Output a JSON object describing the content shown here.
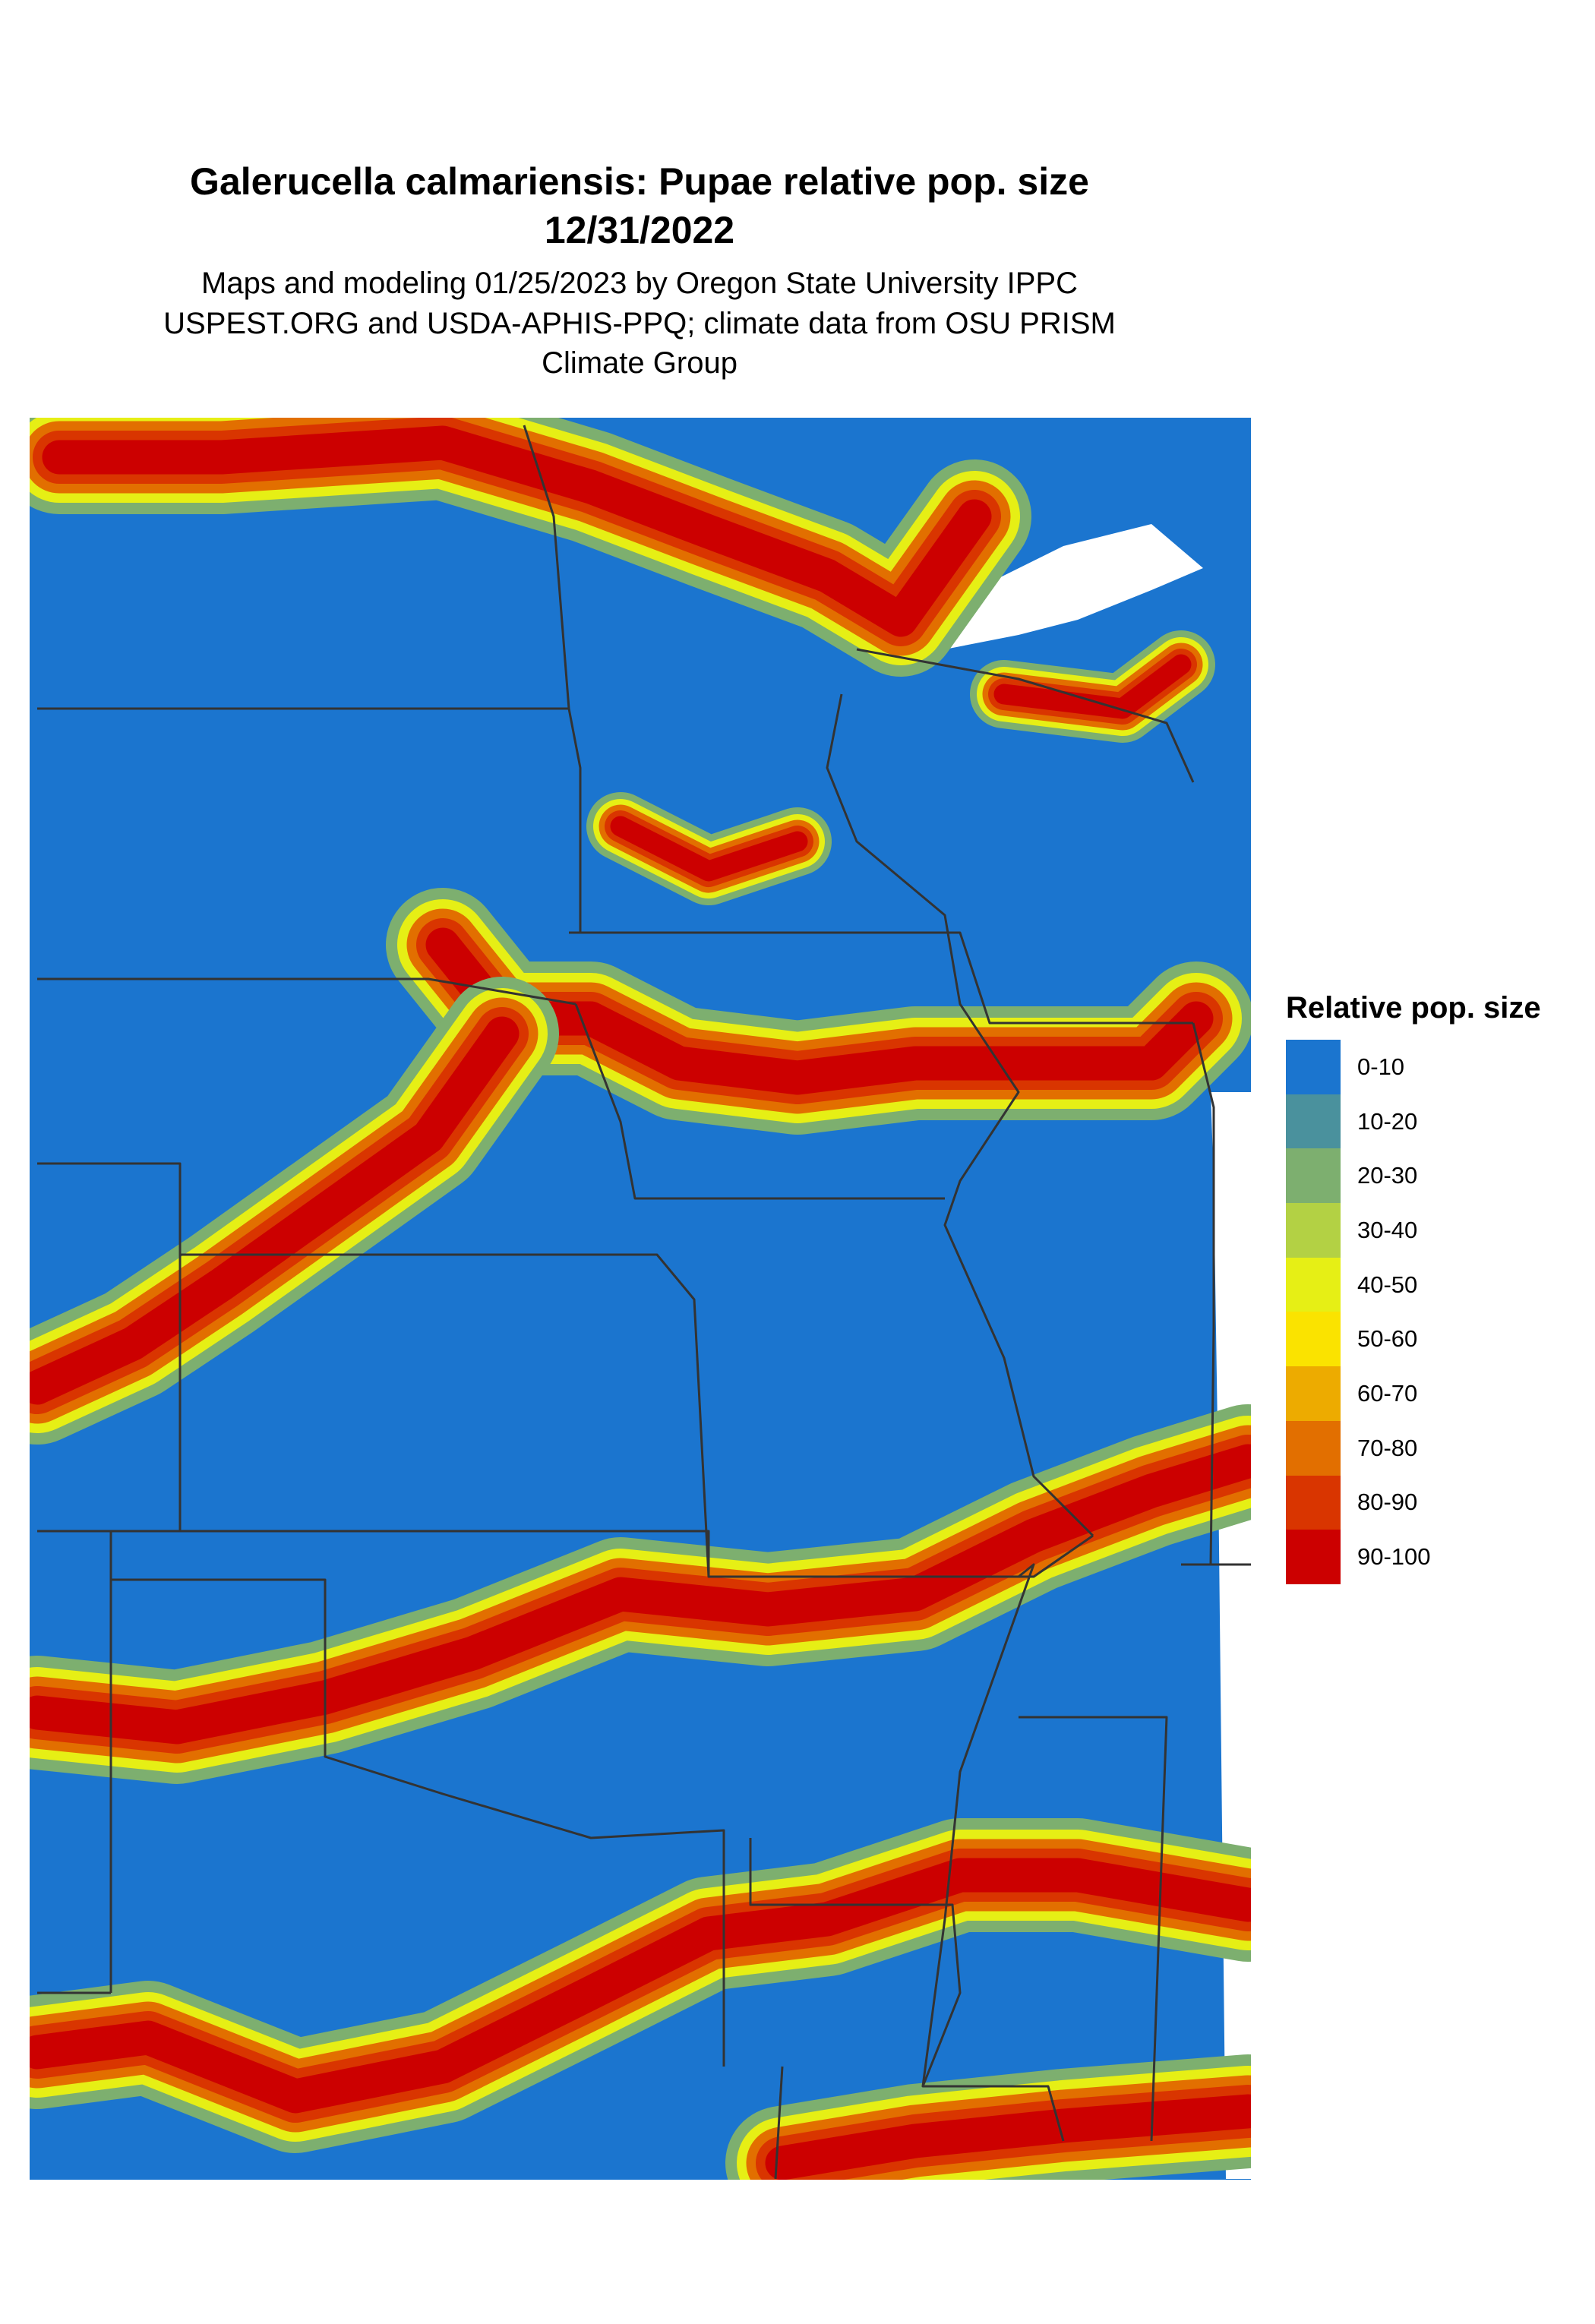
{
  "title": "Galerucella calmariensis: Pupae relative pop. size",
  "date": "12/31/2022",
  "subtitle": [
    "Maps and modeling 01/25/2023 by Oregon State University IPPC",
    "USPEST.ORG and USDA-APHIS-PPQ; climate data from OSU PRISM",
    "Climate Group"
  ],
  "legend": {
    "title": "Relative pop. size",
    "items": [
      {
        "label": "0-10",
        "color": "#1b75cf"
      },
      {
        "label": "10-20",
        "color": "#4a919d"
      },
      {
        "label": "20-30",
        "color": "#7daf6f"
      },
      {
        "label": "30-40",
        "color": "#b3d144"
      },
      {
        "label": "40-50",
        "color": "#e6ef15"
      },
      {
        "label": "50-60",
        "color": "#fae300"
      },
      {
        "label": "60-70",
        "color": "#edab00"
      },
      {
        "label": "70-80",
        "color": "#e26f00"
      },
      {
        "label": "80-90",
        "color": "#d93500"
      },
      {
        "label": "90-100",
        "color": "#cc0000"
      }
    ]
  },
  "map": {
    "background_color": "#1b75cf",
    "boundary_color": "#333333"
  }
}
